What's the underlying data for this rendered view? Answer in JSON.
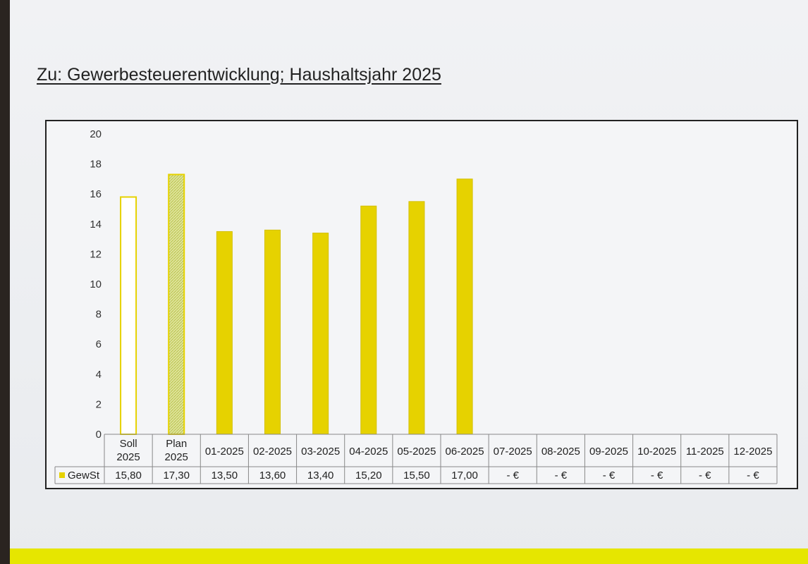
{
  "title": "Zu: Gewerbesteuerentwicklung; Haushaltsjahr 2025",
  "colors": {
    "bar": "#e6d200",
    "bar_edge": "#d4c000",
    "hatch": "#c8cf70",
    "stripe": "#e6e600"
  },
  "chart_data": {
    "type": "bar",
    "ylim": [
      0,
      20
    ],
    "yticks": [
      "0",
      "2",
      "4",
      "6",
      "8",
      "10",
      "12",
      "14",
      "16",
      "18",
      "20"
    ],
    "categories": [
      [
        "Soll",
        "2025"
      ],
      [
        "Plan",
        "2025"
      ],
      [
        "01-2025"
      ],
      [
        "02-2025"
      ],
      [
        "03-2025"
      ],
      [
        "04-2025"
      ],
      [
        "05-2025"
      ],
      [
        "06-2025"
      ],
      [
        "07-2025"
      ],
      [
        "08-2025"
      ],
      [
        "09-2025"
      ],
      [
        "10-2025"
      ],
      [
        "11-2025"
      ],
      [
        "12-2025"
      ]
    ],
    "series": [
      {
        "name": "GewSt",
        "values": [
          15.8,
          17.3,
          13.5,
          13.6,
          13.4,
          15.2,
          15.5,
          17.0,
          null,
          null,
          null,
          null,
          null,
          null
        ],
        "labels": [
          "15,80",
          "17,30",
          "13,50",
          "13,60",
          "13,40",
          "15,20",
          "15,50",
          "17,00",
          "-   €",
          "-   €",
          "-   €",
          "-   €",
          "-   €",
          "-   €"
        ],
        "styles": [
          "outline",
          "hatched",
          "solid",
          "solid",
          "solid",
          "solid",
          "solid",
          "solid",
          "solid",
          "solid",
          "solid",
          "solid",
          "solid",
          "solid"
        ]
      }
    ],
    "legend": "data-table"
  }
}
